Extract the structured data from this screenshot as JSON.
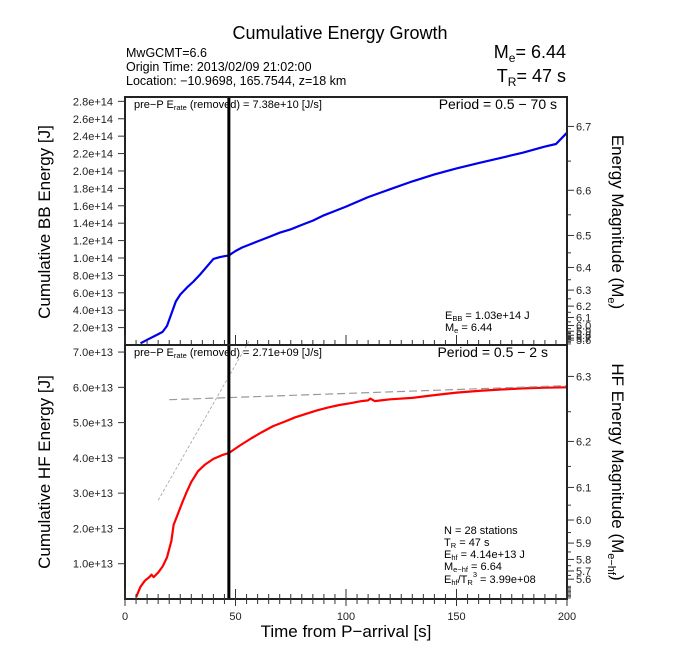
{
  "header": {
    "title": "Cumulative Energy Growth",
    "event_lines": [
      "MwGCMT=6.6",
      "Origin Time: 2013/02/09 21:02:00",
      "Location: −10.9698, 165.7544, z=18 km"
    ],
    "me_label": "M",
    "me_sub": "e",
    "me_value": "= 6.44",
    "tr_label": "T",
    "tr_sub": "R",
    "tr_value": "= 47 s"
  },
  "chart_data": [
    {
      "type": "line",
      "name": "broadband",
      "title": "Cumulative Energy Growth",
      "xlabel": "Time from P−arrival [s]",
      "ylabel": "Cumulative BB Energy [J]",
      "ylabel_right": "Energy Magnitude (M",
      "ylabel_right_sub": "e",
      "ylabel_right_end": ")",
      "xlim": [
        0,
        200
      ],
      "ylim": [
        0,
        285000000000000.0
      ],
      "yticks": [
        20000000000000.0,
        40000000000000.0,
        60000000000000.0,
        80000000000000.0,
        100000000000000.0,
        120000000000000.0,
        140000000000000.0,
        160000000000000.0,
        180000000000000.0,
        200000000000000.0,
        220000000000000.0,
        240000000000000.0,
        260000000000000.0,
        280000000000000.0
      ],
      "ytick_labels": [
        "2.0e+13",
        "4.0e+13",
        "6.0e+13",
        "8.0e+13",
        "1.0e+14",
        "1.2e+14",
        "1.4e+14",
        "1.6e+14",
        "1.8e+14",
        "2.0e+14",
        "2.2e+14",
        "2.4e+14",
        "2.6e+14",
        "2.8e+14"
      ],
      "right_ticks": [
        "6.7",
        "6.6",
        "6.5",
        "6.4",
        "6.3",
        "6.2",
        "6.1",
        "6.0",
        "5.9",
        "5.8",
        "5.7",
        "5.6"
      ],
      "magnitude_formula": "Me = 2/3*log10(E) - 2.9",
      "series": [
        {
          "name": "BB energy",
          "color": "#0000ee",
          "x": [
            7,
            10,
            14,
            17,
            19,
            21,
            23,
            25,
            28,
            31,
            34,
            37,
            40,
            43,
            45,
            47,
            50,
            53,
            56,
            60,
            65,
            70,
            75,
            80,
            85,
            90,
            95,
            100,
            110,
            120,
            130,
            140,
            150,
            160,
            170,
            180,
            190,
            195,
            200
          ],
          "y": [
            2000000000000.0,
            6000000000000.0,
            11000000000000.0,
            15000000000000.0,
            22000000000000.0,
            36000000000000.0,
            50000000000000.0,
            58000000000000.0,
            66000000000000.0,
            73000000000000.0,
            81000000000000.0,
            90000000000000.0,
            99000000000000.0,
            101000000000000.0,
            102000000000000.0,
            103000000000000.0,
            108000000000000.0,
            112000000000000.0,
            115000000000000.0,
            119000000000000.0,
            124000000000000.0,
            129000000000000.0,
            133000000000000.0,
            138000000000000.0,
            143000000000000.0,
            149000000000000.0,
            154000000000000.0,
            159000000000000.0,
            170000000000000.0,
            179000000000000.0,
            188000000000000.0,
            196000000000000.0,
            203000000000000.0,
            209000000000000.0,
            215000000000000.0,
            221000000000000.0,
            228000000000000.0,
            231000000000000.0,
            244000000000000.0
          ]
        }
      ],
      "annotations": {
        "prep_prefix": "pre−P E",
        "prep_sub": "rate",
        "prep_suffix": " (removed) = 7.38e+10 [J/s]",
        "period": "Period = 0.5 − 70 s",
        "ebb_label": "E",
        "ebb_sub": "BB",
        "ebb_value": " = 1.03e+14 J",
        "me_label": "M",
        "me_sub": "e",
        "me_value": " = 6.44"
      },
      "vline_x": 47
    },
    {
      "type": "line",
      "name": "high-frequency",
      "xlabel": "Time from P−arrival [s]",
      "ylabel": "Cumulative HF Energy [J]",
      "ylabel_right": "HF Energy Magnitude (M",
      "ylabel_right_sub": "e−hf",
      "ylabel_right_end": ")",
      "xlim": [
        0,
        200
      ],
      "ylim": [
        0,
        72000000000000.0
      ],
      "xticks": [
        0,
        50,
        100,
        150,
        200
      ],
      "xtick_labels": [
        "0",
        "50",
        "100",
        "150",
        "200"
      ],
      "yticks": [
        10000000000000.0,
        20000000000000.0,
        30000000000000.0,
        40000000000000.0,
        50000000000000.0,
        60000000000000.0,
        70000000000000.0
      ],
      "ytick_labels": [
        "1.0e+13",
        "2.0e+13",
        "3.0e+13",
        "4.0e+13",
        "5.0e+13",
        "6.0e+13",
        "7.0e+13"
      ],
      "right_ticks": [
        "6.7",
        "6.6",
        "6.5",
        "6.4",
        "6.3",
        "6.2",
        "6.1",
        "6.0",
        "5.9",
        "5.8",
        "5.7",
        "5.6"
      ],
      "series": [
        {
          "name": "HF energy",
          "color": "#ff0000",
          "x": [
            5,
            7,
            9,
            11,
            12,
            13,
            15,
            17,
            19,
            21,
            22,
            24,
            26,
            28,
            30,
            33,
            36,
            40,
            44,
            47,
            52,
            57,
            62,
            67,
            72,
            77,
            82,
            87,
            92,
            97,
            102,
            107,
            110,
            111,
            113,
            120,
            130,
            140,
            150,
            160,
            170,
            180,
            190,
            200
          ],
          "y": [
            500000000000.0,
            3500000000000.0,
            5200000000000.0,
            6200000000000.0,
            6900000000000.0,
            6200000000000.0,
            7500000000000.0,
            9200000000000.0,
            11800000000000.0,
            16500000000000.0,
            21000000000000.0,
            24200000000000.0,
            27500000000000.0,
            30500000000000.0,
            33200000000000.0,
            36200000000000.0,
            38000000000000.0,
            39700000000000.0,
            40800000000000.0,
            41400000000000.0,
            43500000000000.0,
            45500000000000.0,
            47300000000000.0,
            49000000000000.0,
            50200000000000.0,
            51500000000000.0,
            52500000000000.0,
            53500000000000.0,
            54300000000000.0,
            55000000000000.0,
            55500000000000.0,
            56100000000000.0,
            56300000000000.0,
            56800000000000.0,
            56100000000000.0,
            56600000000000.0,
            57000000000000.0,
            57800000000000.0,
            58500000000000.0,
            59000000000000.0,
            59400000000000.0,
            59700000000000.0,
            59900000000000.0,
            60000000000000.0
          ]
        },
        {
          "name": "plateau fit (dashed)",
          "color": "#999999",
          "x": [
            20,
            200
          ],
          "y": [
            56500000000000.0,
            60500000000000.0
          ]
        },
        {
          "name": "growth slope fit (dotted)",
          "color": "#aaaaaa",
          "x": [
            15,
            56
          ],
          "y": [
            28000000000000.0,
            73000000000000.0
          ]
        }
      ],
      "annotations": {
        "prep_prefix": "pre−P E",
        "prep_sub": "rate",
        "prep_suffix": " (removed) = 2.71e+09 [J/s]",
        "period": "Period = 0.5 − 2 s",
        "n_stations": "N = 28 stations",
        "tr_label": "T",
        "tr_sub": "R",
        "tr_value": " = 47  s",
        "ehf_label": "E",
        "ehf_sub": "hf",
        "ehf_value": " = 4.14e+13 J",
        "mehf_label": "M",
        "mehf_sub": "e−hf",
        "mehf_value": " = 6.64",
        "ratio_label": "E",
        "ratio_sub": "hf",
        "ratio_mid": "/T",
        "ratio_sub2": "R",
        "ratio_sup": "3",
        "ratio_value": " =  3.99e+08"
      },
      "vline_x": 47
    }
  ]
}
